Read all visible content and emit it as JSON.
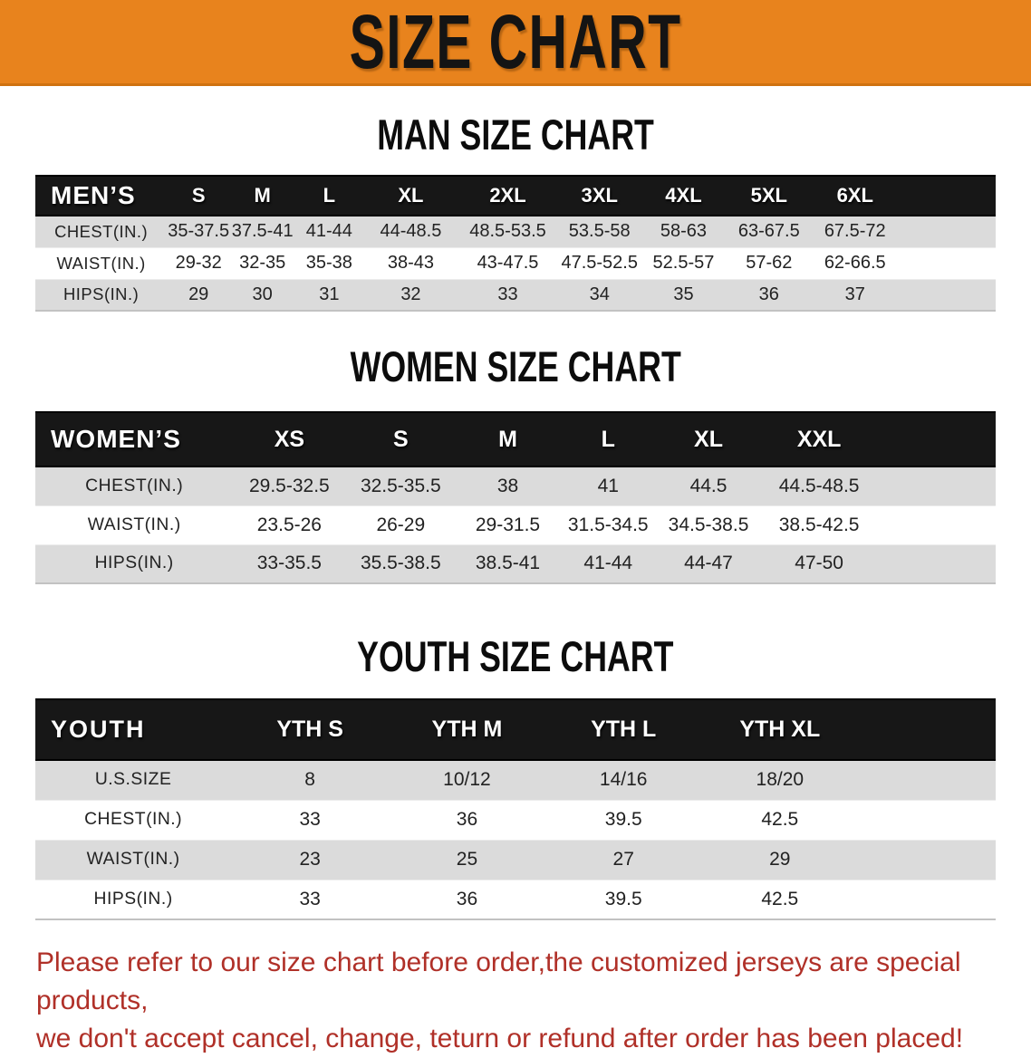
{
  "banner": {
    "title": "SIZE CHART"
  },
  "colors": {
    "banner_bg": "#E8831D",
    "header_bar_bg": "#171717",
    "row_stripe": "#DBDBDB",
    "footer_text": "#B03028"
  },
  "sections": [
    {
      "id": "men",
      "heading": "MAN SIZE CHART",
      "table": {
        "header_label": "MEN’S",
        "sizes": [
          "S",
          "M",
          "L",
          "XL",
          "2XL",
          "3XL",
          "4XL",
          "5XL",
          "6XL"
        ],
        "rows": [
          {
            "label": "CHEST(IN.)",
            "values": [
              "35-37.5",
              "37.5-41",
              "41-44",
              "44-48.5",
              "48.5-53.5",
              "53.5-58",
              "58-63",
              "63-67.5",
              "67.5-72"
            ]
          },
          {
            "label": "WAIST(IN.)",
            "values": [
              "29-32",
              "32-35",
              "35-38",
              "38-43",
              "43-47.5",
              "47.5-52.5",
              "52.5-57",
              "57-62",
              "62-66.5"
            ]
          },
          {
            "label": "HIPS(IN.)",
            "values": [
              "29",
              "30",
              "31",
              "32",
              "33",
              "34",
              "35",
              "36",
              "37"
            ]
          }
        ]
      }
    },
    {
      "id": "women",
      "heading": "WOMEN SIZE CHART",
      "table": {
        "header_label": "WOMEN’S",
        "sizes": [
          "XS",
          "S",
          "M",
          "L",
          "XL",
          "XXL"
        ],
        "rows": [
          {
            "label": "CHEST(IN.)",
            "values": [
              "29.5-32.5",
              "32.5-35.5",
              "38",
              "41",
              "44.5",
              "44.5-48.5"
            ]
          },
          {
            "label": "WAIST(IN.)",
            "values": [
              "23.5-26",
              "26-29",
              "29-31.5",
              "31.5-34.5",
              "34.5-38.5",
              "38.5-42.5"
            ]
          },
          {
            "label": "HIPS(IN.)",
            "values": [
              "33-35.5",
              "35.5-38.5",
              "38.5-41",
              "41-44",
              "44-47",
              "47-50"
            ]
          }
        ]
      }
    },
    {
      "id": "youth",
      "heading": "YOUTH SIZE CHART",
      "table": {
        "header_label": "YOUTH",
        "sizes": [
          "YTH S",
          "YTH M",
          "YTH L",
          "YTH XL"
        ],
        "rows": [
          {
            "label": "U.S.SIZE",
            "values": [
              "8",
              "10/12",
              "14/16",
              "18/20"
            ]
          },
          {
            "label": "CHEST(IN.)",
            "values": [
              "33",
              "36",
              "39.5",
              "42.5"
            ]
          },
          {
            "label": "WAIST(IN.)",
            "values": [
              "23",
              "25",
              "27",
              "29"
            ]
          },
          {
            "label": "HIPS(IN.)",
            "values": [
              "33",
              "36",
              "39.5",
              "42.5"
            ]
          }
        ]
      }
    }
  ],
  "footer": {
    "line1": "Please refer to our size chart before order,the customized jerseys are special products,",
    "line2": "we don't accept cancel, change, teturn or refund after order has been placed!"
  }
}
